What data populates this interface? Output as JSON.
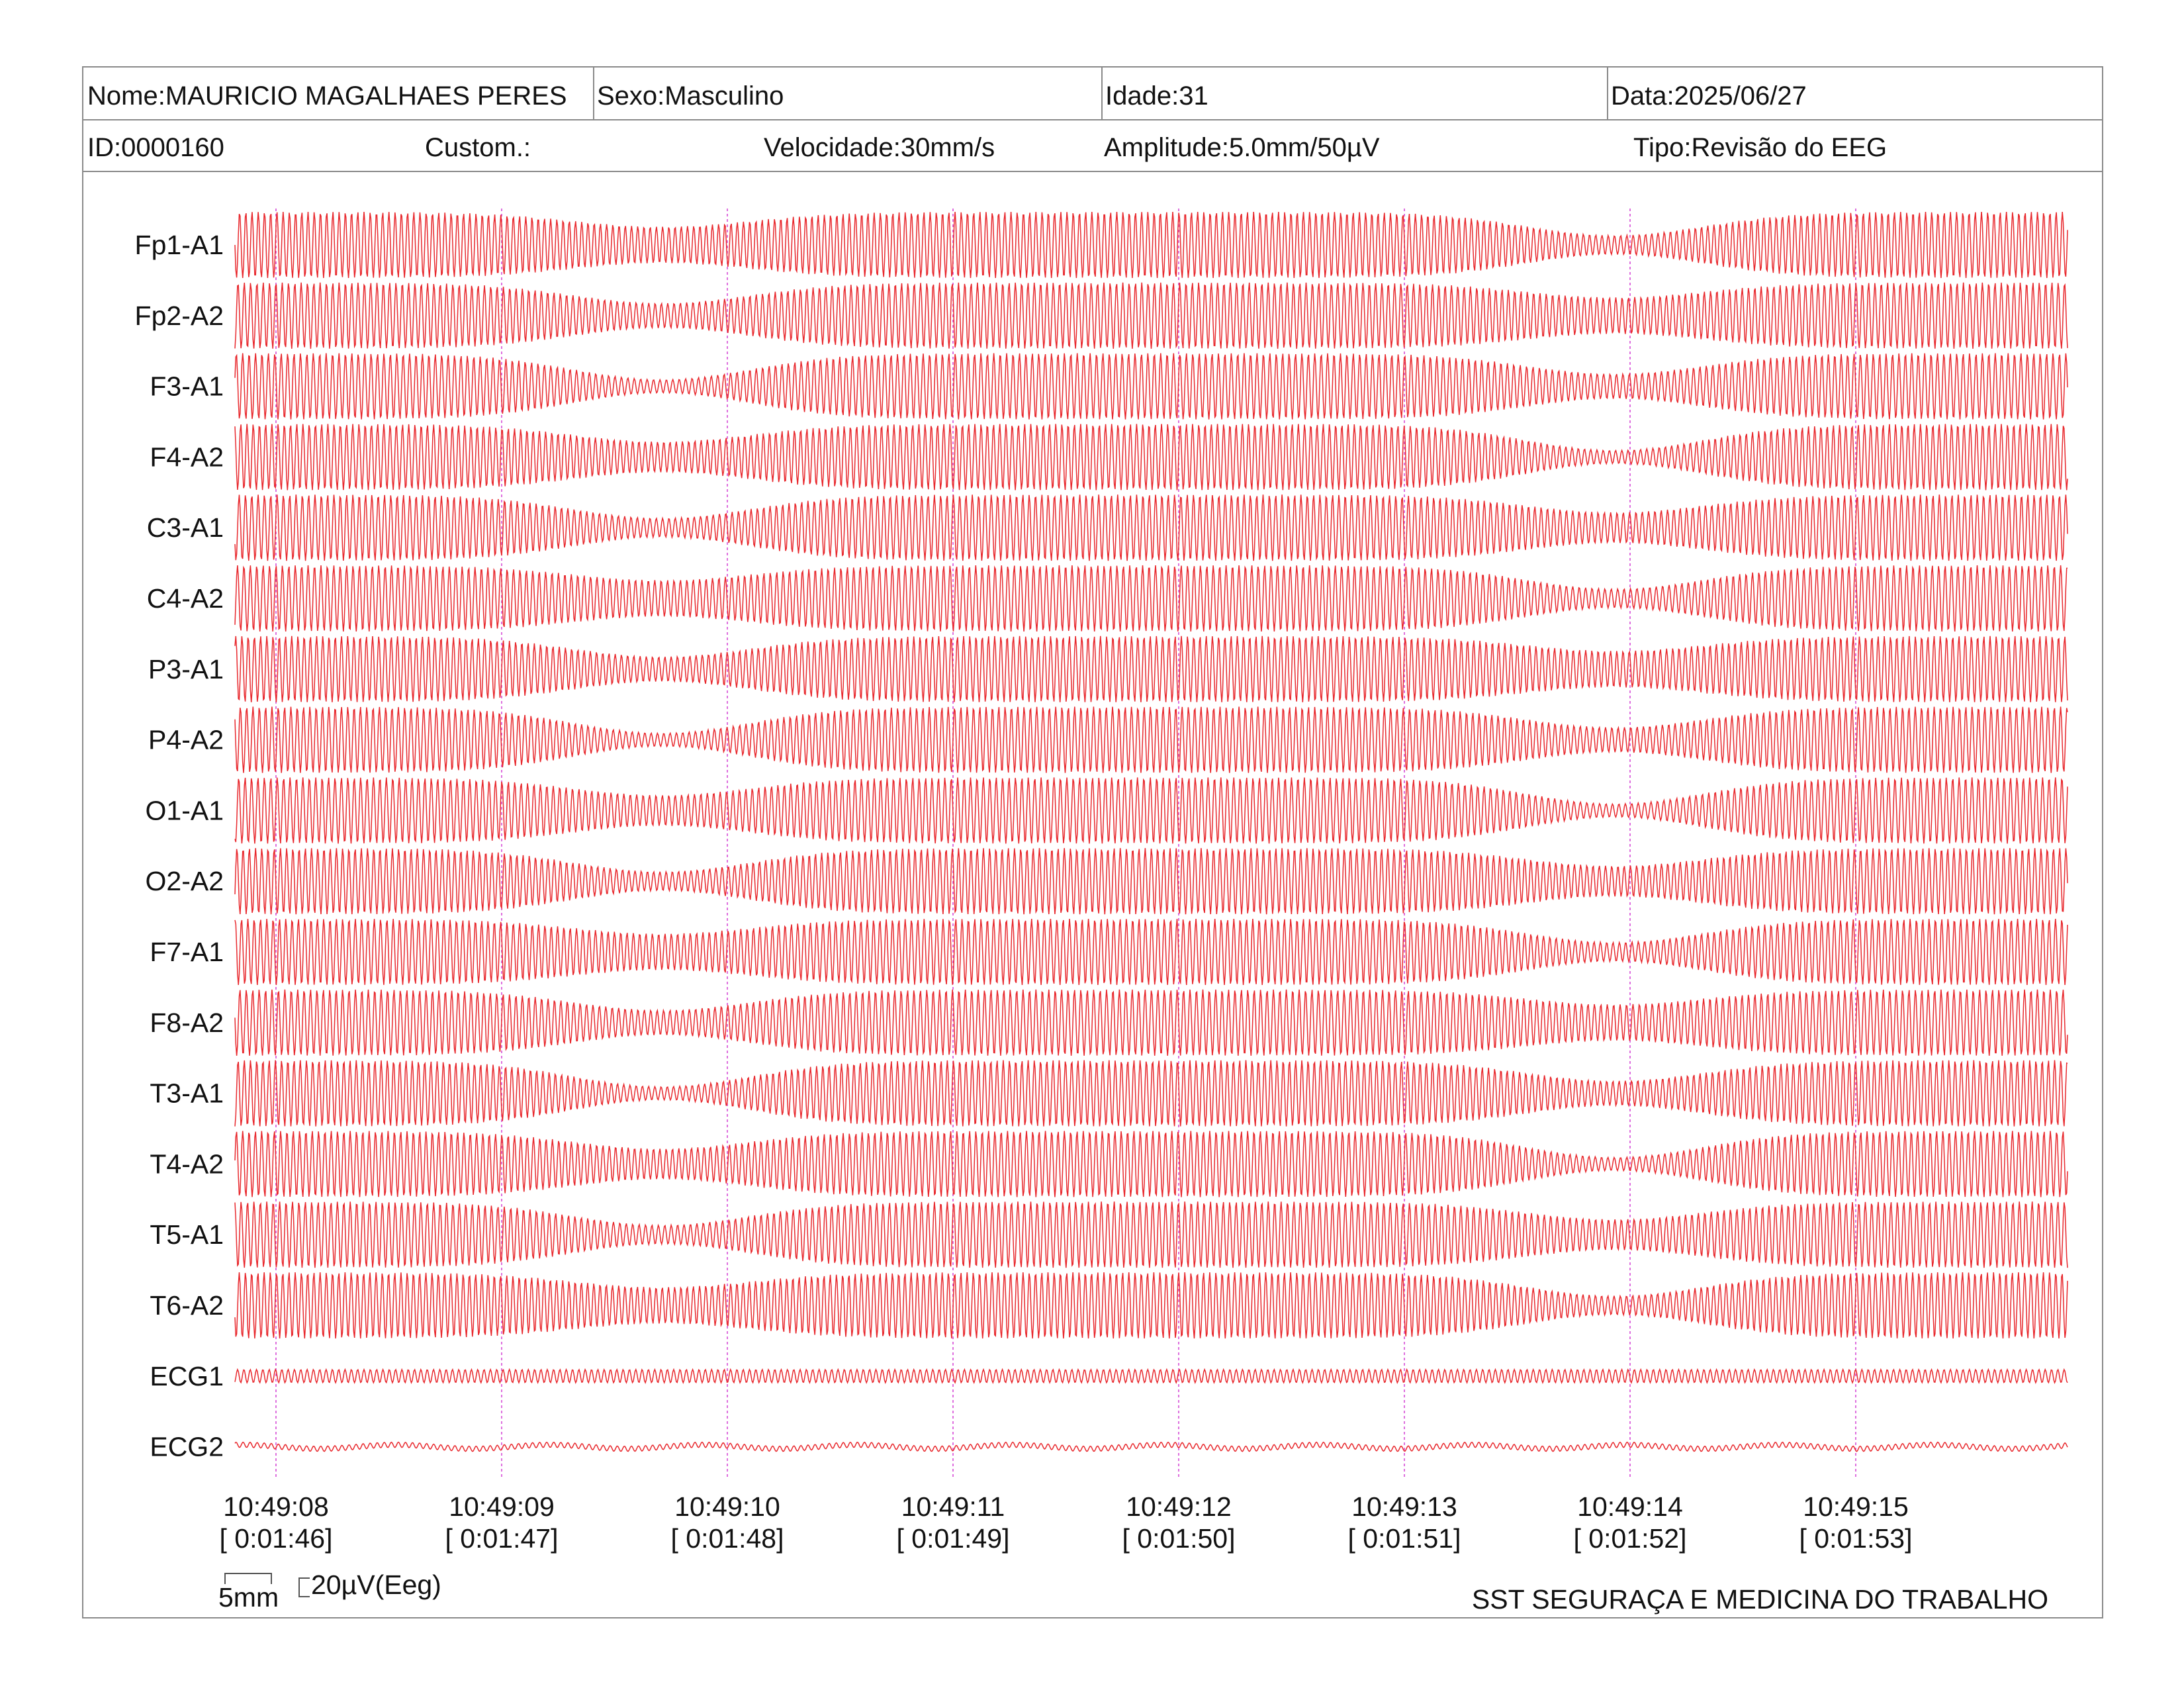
{
  "header": {
    "nome": "Nome:MAURICIO MAGALHAES PERES",
    "sexo": "Sexo:Masculino",
    "idade": "Idade:31",
    "data": "Data:2025/06/27",
    "id": "ID:0000160",
    "custom": "Custom.:",
    "velocidade": "Velocidade:30mm/s",
    "amplitude": "Amplitude:5.0mm/50µV",
    "tipo": "Tipo:Revisão do EEG"
  },
  "footer": {
    "scale_mm": "5mm",
    "scale_uv": "20µV(Eeg)",
    "company": "SST SEGURAÇA E MEDICINA DO TRABALHO"
  },
  "colors": {
    "trace": "#e8282d",
    "marker": "#d64ad6",
    "border": "#8a8a8a"
  },
  "chart_data": {
    "type": "line",
    "title": "",
    "channels": [
      "Fp1-A1",
      "Fp2-A2",
      "F3-A1",
      "F4-A2",
      "C3-A1",
      "C4-A2",
      "P3-A1",
      "P4-A2",
      "O1-A1",
      "O2-A2",
      "F7-A1",
      "F8-A2",
      "T3-A1",
      "T4-A2",
      "T5-A1",
      "T6-A2",
      "ECG1",
      "ECG2"
    ],
    "time_ticks": [
      {
        "clock": "10:49:08",
        "elapsed": "[ 0:01:46]"
      },
      {
        "clock": "10:49:09",
        "elapsed": "[ 0:01:47]"
      },
      {
        "clock": "10:49:10",
        "elapsed": "[ 0:01:48]"
      },
      {
        "clock": "10:49:11",
        "elapsed": "[ 0:01:49]"
      },
      {
        "clock": "10:49:12",
        "elapsed": "[ 0:01:50]"
      },
      {
        "clock": "10:49:13",
        "elapsed": "[ 0:01:51]"
      },
      {
        "clock": "10:49:14",
        "elapsed": "[ 0:01:52]"
      },
      {
        "clock": "10:49:15",
        "elapsed": "[ 0:01:53]"
      }
    ],
    "paper_speed_mm_per_s": 30,
    "amplitude": "5.0mm/50µV",
    "grid": false
  }
}
